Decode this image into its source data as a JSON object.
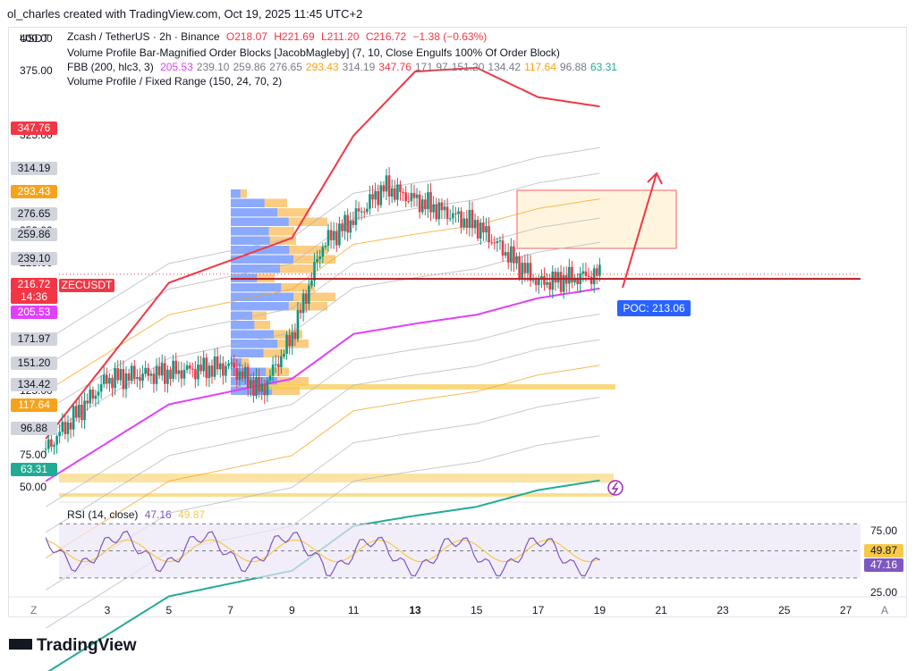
{
  "header": {
    "text": "ol_charles created with TradingView.com, Oct 19, 2025 11:45 UTC+2"
  },
  "symbol_currency": "USDT",
  "legend": {
    "title": "Zcash / TetherUS · 2h · Binance",
    "ohlc": {
      "o": "O218.07",
      "h": "H221.69",
      "l": "L211.20",
      "c": "C216.72",
      "change": "−1.38 (−0.63%)"
    },
    "ind1": "Volume Profile Bar-Magnified Order Blocks [JacobMagleby] (7, 10, Close Engulfs 100% Of Order Block)",
    "ind2_name": "FBB (200, hlc3, 3)",
    "ind2_values": [
      "205.53",
      "239.10",
      "259.86",
      "276.65",
      "293.43",
      "314.19",
      "347.76",
      "171.97",
      "151.20",
      "134.42",
      "117.64",
      "96.88",
      "63.31"
    ],
    "ind2_colors": [
      "#e040fb",
      "#787b86",
      "#787b86",
      "#787b86",
      "#f7a21b",
      "#787b86",
      "#f23645",
      "#787b86",
      "#787b86",
      "#787b86",
      "#f7a21b",
      "#787b86",
      "#22ab94"
    ],
    "ind3": "Volume Profile / Fixed Range (150, 24, 70, 2)"
  },
  "price_axis": {
    "ticks": [
      "400.00",
      "375.00",
      "325.00",
      "300.00",
      "250.00",
      "225.00",
      "125.00",
      "75.00",
      "50.00"
    ],
    "boxes": [
      {
        "label": "347.76",
        "color": "#f23645",
        "text_color": "#ffffff"
      },
      {
        "label": "314.19",
        "color": "#d1d4dc",
        "text_color": "#131722"
      },
      {
        "label": "293.43",
        "color": "#f7a21b",
        "text_color": "#ffffff"
      },
      {
        "label": "276.65",
        "color": "#d1d4dc",
        "text_color": "#131722"
      },
      {
        "label": "259.86",
        "color": "#d1d4dc",
        "text_color": "#131722"
      },
      {
        "label": "239.10",
        "color": "#d1d4dc",
        "text_color": "#131722"
      },
      {
        "label": "216.72",
        "color": "#f23645",
        "text_color": "#ffffff"
      },
      {
        "label": "14:36",
        "color": "#f23645",
        "text_color": "#ffffff"
      },
      {
        "label": "205.53",
        "color": "#e040fb",
        "text_color": "#ffffff"
      },
      {
        "label": "171.97",
        "color": "#d1d4dc",
        "text_color": "#131722"
      },
      {
        "label": "151.20",
        "color": "#d1d4dc",
        "text_color": "#131722"
      },
      {
        "label": "134.42",
        "color": "#d1d4dc",
        "text_color": "#131722"
      },
      {
        "label": "117.64",
        "color": "#f7a21b",
        "text_color": "#ffffff"
      },
      {
        "label": "96.88",
        "color": "#d1d4dc",
        "text_color": "#131722"
      },
      {
        "label": "63.31",
        "color": "#22ab94",
        "text_color": "#ffffff"
      }
    ]
  },
  "symbol_tag": "ZECUSDT",
  "poc_label": "POC: 213.06",
  "rsi": {
    "name": "RSI (14, close)",
    "value": "47.16",
    "ma_value": "49.87",
    "ticks": [
      "75.00",
      "25.00"
    ],
    "colors": {
      "rsi": "#7e57c2",
      "ma": "#f7c948"
    }
  },
  "time_axis": {
    "labels": [
      "3",
      "5",
      "7",
      "9",
      "11",
      "13",
      "15",
      "17",
      "19",
      "21",
      "23",
      "25",
      "27"
    ],
    "left_button": "Z",
    "right_button": "A"
  },
  "logo": "TradingView",
  "colors": {
    "up": "#089981",
    "down": "#f23645",
    "upper_band": "#f23645",
    "basis": "#e040fb",
    "fib_orange": "#f7a21b",
    "lower_band": "#22ab94",
    "poc": "#2962ff",
    "poc_line": "#b71c1c"
  },
  "chart_data": {
    "type": "line",
    "title": "Zcash / TetherUS · 2h · Binance",
    "x_labels": [
      "3",
      "5",
      "7",
      "9",
      "11",
      "13",
      "15",
      "17",
      "19",
      "21",
      "23",
      "25",
      "27"
    ],
    "ylim": [
      40,
      410
    ],
    "last": 216.72,
    "poc": 213.06,
    "series": [
      {
        "name": "Zcash / TetherUS",
        "x": [
          "1",
          "3",
          "5",
          "7",
          "8",
          "9",
          "10",
          "11",
          "12",
          "13",
          "15",
          "17",
          "19"
        ],
        "values": [
          80,
          135,
          140,
          145,
          125,
          168,
          240,
          260,
          285,
          275,
          255,
          210,
          216.72
        ]
      },
      {
        "name": "347.76",
        "x": [
          "1",
          "5",
          "9",
          "11",
          "13",
          "15",
          "17",
          "19"
        ],
        "values": [
          88,
          210,
          245,
          325,
          375,
          378,
          355,
          347.76
        ]
      },
      {
        "name": "205.53",
        "x": [
          "1",
          "5",
          "9",
          "11",
          "13",
          "15",
          "17",
          "19"
        ],
        "values": [
          55,
          115,
          135,
          170,
          178,
          185,
          198,
          205.53
        ]
      }
    ]
  }
}
